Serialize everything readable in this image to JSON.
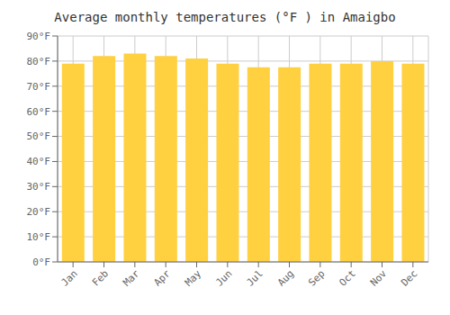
{
  "chart_data": {
    "type": "bar",
    "title": "Average monthly temperatures (°F ) in Amaigbo",
    "categories": [
      "Jan",
      "Feb",
      "Mar",
      "Apr",
      "May",
      "Jun",
      "Jul",
      "Aug",
      "Sep",
      "Oct",
      "Nov",
      "Dec"
    ],
    "values": [
      79.0,
      82.0,
      83.0,
      82.0,
      81.0,
      79.0,
      77.5,
      77.5,
      79.0,
      79.0,
      80.0,
      79.0
    ],
    "color": "#FFD040",
    "ylim": [
      0,
      90
    ],
    "yticks": [
      {
        "value": 0,
        "label": "0°F"
      },
      {
        "value": 10,
        "label": "10°F"
      },
      {
        "value": 20,
        "label": "20°F"
      },
      {
        "value": 30,
        "label": "30°F"
      },
      {
        "value": 40,
        "label": "40°F"
      },
      {
        "value": 50,
        "label": "50°F"
      },
      {
        "value": 60,
        "label": "60°F"
      },
      {
        "value": 70,
        "label": "70°F"
      },
      {
        "value": 80,
        "label": "80°F"
      },
      {
        "value": 90,
        "label": "90°F"
      }
    ],
    "grid": true
  }
}
